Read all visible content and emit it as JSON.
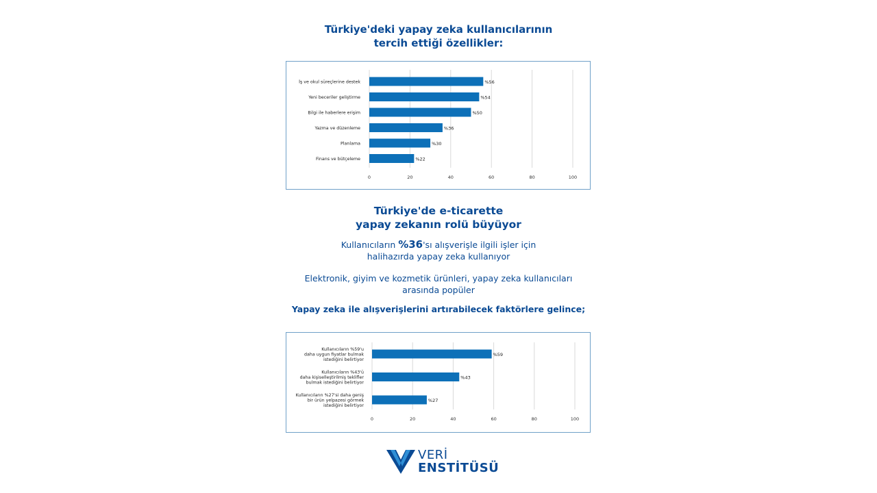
{
  "title1": {
    "line1": "Türkiye'deki yapay zeka kullanıcılarının",
    "line2": "tercih ettiği özellikler:"
  },
  "title2": {
    "line1": "Türkiye'de e-ticarette",
    "line2": "yapay zekanın rolü büyüyor"
  },
  "para1": {
    "prefix": "Kullanıcıların ",
    "highlight": "%36",
    "suffix": "'sı alışverişle ilgili işler için",
    "line2": "halihazırda yapay zeka kullanıyor"
  },
  "para2": {
    "line1": "Elektronik, giyim ve kozmetik ürünleri, yapay zeka kullanıcıları",
    "line2": "arasında popüler"
  },
  "subhead": "Yapay zeka ile alışverişlerini artırabilecek faktörlere gelince;",
  "logo": {
    "line1": "VERİ",
    "line2": "ENSTİTÜSÜ"
  },
  "colors": {
    "bar": "#0d70b8",
    "text": "#0a4a94",
    "grid": "#d9d9d9",
    "border": "#6fa0c8"
  },
  "chart_data": [
    {
      "type": "bar",
      "orientation": "horizontal",
      "categories": [
        [
          "İş ve okul süreçlerine destek"
        ],
        [
          "Yeni beceriler geliştirme"
        ],
        [
          "Bilgi ile haberlere erişim"
        ],
        [
          "Yazma ve düzenleme"
        ],
        [
          "Planlama"
        ],
        [
          "Finans ve bütçeleme"
        ]
      ],
      "values": [
        56,
        54,
        50,
        36,
        30,
        22
      ],
      "value_labels": [
        "%56",
        "%54",
        "%50",
        "%36",
        "%30",
        "%22"
      ],
      "xlim": [
        0,
        100
      ],
      "xticks": [
        0,
        20,
        40,
        60,
        80,
        100
      ],
      "grid": true
    },
    {
      "type": "bar",
      "orientation": "horizontal",
      "categories": [
        [
          "Kullanıcıların %59'u",
          "daha uygun fiyatlar bulmak",
          "istediğini belirtiyor"
        ],
        [
          "Kullanıcıların %43'ü",
          "daha kişiselleştirilmiş teklifler",
          "bulmak istediğini belirtiyor"
        ],
        [
          "Kullanıcıların %27'si daha geniş",
          "bir ürün yelpazesi görmek",
          "istediğini belirtiyor"
        ]
      ],
      "values": [
        59,
        43,
        27
      ],
      "value_labels": [
        "%59",
        "%43",
        "%27"
      ],
      "xlim": [
        0,
        100
      ],
      "xticks": [
        0,
        20,
        40,
        60,
        80,
        100
      ],
      "grid": true
    }
  ]
}
